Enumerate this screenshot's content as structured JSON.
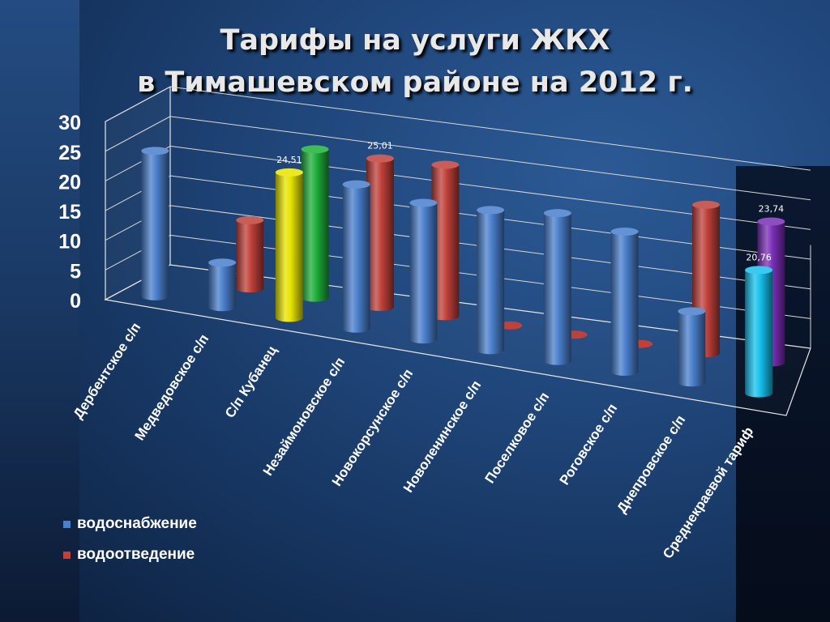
{
  "title_line1": "Тарифы на услуги ЖКХ",
  "title_line2": "в Тимашевском районе на 2012 г.",
  "chart_data": {
    "type": "bar",
    "style": "3d-cylinder",
    "categories": [
      "Дербентское с/п",
      "Медведовское с/п",
      "С/п Кубанец",
      "Незаймоновское с/п",
      "Новокорсунское с/п",
      "Новоленинское с/п",
      "Поселковое с/п",
      "Роговское с/п",
      "Днепровское с/п",
      "Среднекраевой тариф"
    ],
    "series": [
      {
        "name": "водоснабжение",
        "color": "#4a7fcc",
        "values": [
          24.5,
          7.5,
          24.51,
          24.3,
          23.0,
          23.6,
          24.9,
          23.6,
          12.0,
          20.76
        ]
      },
      {
        "name": "водоотведение",
        "color": "#c0403a",
        "values": [
          null,
          11.5,
          25.0,
          25.01,
          25.5,
          0,
          0,
          0,
          25.0,
          23.74
        ]
      }
    ],
    "bar_colors": {
      "2-0": "#e8e400",
      "2-1": "#1fae3a",
      "9-0": "#17c1ee",
      "9-1": "#7a2fb8"
    },
    "data_labels": [
      {
        "category": 2,
        "series": 0,
        "text": "24,51"
      },
      {
        "category": 3,
        "series": 1,
        "text": "25,01"
      },
      {
        "category": 9,
        "series": 1,
        "text": "23,74"
      },
      {
        "category": 9,
        "series": 0,
        "text": "20,76"
      }
    ],
    "y_ticks": [
      "0",
      "5",
      "10",
      "15",
      "20",
      "25",
      "30"
    ],
    "ylim": [
      0,
      30
    ],
    "grid": true,
    "legend_position": "bottom-left"
  }
}
